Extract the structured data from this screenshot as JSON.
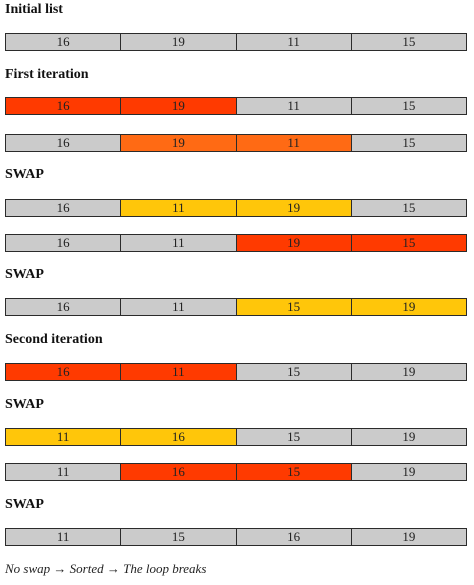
{
  "colors": {
    "neutral": "#cbcbcb",
    "red": "#ff3a00",
    "orange": "#ff6a14",
    "yellow": "#ffc60a"
  },
  "steps": [
    {
      "heading": "Initial list",
      "values": [
        "16",
        "19",
        "11",
        "15"
      ],
      "highlight": [
        "neutral",
        "neutral",
        "neutral",
        "neutral"
      ]
    },
    {
      "heading": "First iteration",
      "values": [
        "16",
        "19",
        "11",
        "15"
      ],
      "highlight": [
        "red",
        "red",
        "neutral",
        "neutral"
      ]
    },
    {
      "heading": "",
      "values": [
        "16",
        "19",
        "11",
        "15"
      ],
      "highlight": [
        "neutral",
        "orange",
        "orange",
        "neutral"
      ]
    },
    {
      "heading": "SWAP",
      "values": [
        "16",
        "11",
        "19",
        "15"
      ],
      "highlight": [
        "neutral",
        "yellow",
        "yellow",
        "neutral"
      ]
    },
    {
      "heading": "",
      "values": [
        "16",
        "11",
        "19",
        "15"
      ],
      "highlight": [
        "neutral",
        "neutral",
        "red",
        "red"
      ]
    },
    {
      "heading": "SWAP",
      "values": [
        "16",
        "11",
        "15",
        "19"
      ],
      "highlight": [
        "neutral",
        "neutral",
        "yellow",
        "yellow"
      ]
    },
    {
      "heading": "Second iteration",
      "values": [
        "16",
        "11",
        "15",
        "19"
      ],
      "highlight": [
        "red",
        "red",
        "neutral",
        "neutral"
      ]
    },
    {
      "heading": "SWAP",
      "values": [
        "11",
        "16",
        "15",
        "19"
      ],
      "highlight": [
        "yellow",
        "yellow",
        "neutral",
        "neutral"
      ]
    },
    {
      "heading": "",
      "values": [
        "11",
        "16",
        "15",
        "19"
      ],
      "highlight": [
        "neutral",
        "red",
        "red",
        "neutral"
      ]
    },
    {
      "heading": "SWAP",
      "values": [
        "11",
        "15",
        "16",
        "19"
      ],
      "highlight": [
        "neutral",
        "neutral",
        "neutral",
        "neutral"
      ]
    }
  ],
  "footer": "No swap → Sorted → The loop breaks"
}
